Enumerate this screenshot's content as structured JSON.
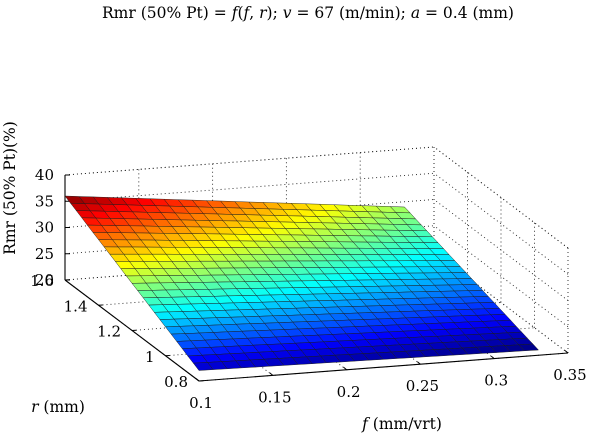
{
  "chart_data": {
    "type": "surface",
    "title": {
      "prefix": "Rmr (50% Pt) = ",
      "f_sym": "f",
      "args_open": "(",
      "args_f": "f",
      "args_sep": ", ",
      "args_r": "r",
      "args_close": ");",
      "v_sym": "v",
      "v_rest": " = 67 (m/min); ",
      "a_sym": "a",
      "a_rest": " = 0.4 (mm)"
    },
    "xlabel": {
      "sym": "f",
      "unit": " (mm/vrt)"
    },
    "ylabel": {
      "sym": "r",
      "unit": " (mm)"
    },
    "zlabel": "Rmr (50% Pt)(%)",
    "x_ticks": [
      "0.1",
      "0.15",
      "0.2",
      "0.25",
      "0.3",
      "0.35"
    ],
    "y_ticks": [
      "0.8",
      "1",
      "1.2",
      "1.4",
      "1.6"
    ],
    "z_ticks": [
      "20",
      "25",
      "30",
      "35",
      "40"
    ],
    "xlim": [
      0.1,
      0.35
    ],
    "ylim": [
      0.8,
      1.6
    ],
    "zlim": [
      20,
      40
    ],
    "grid": true,
    "colormap": "jet",
    "colormap_range": [
      21,
      36
    ],
    "surface_corners": [
      {
        "f": 0.1,
        "r": 0.8,
        "rmr": 22.0
      },
      {
        "f": 0.1,
        "r": 1.6,
        "rmr": 36.0
      },
      {
        "f": 0.33,
        "r": 1.6,
        "rmr": 29.0
      },
      {
        "f": 0.33,
        "r": 0.8,
        "rmr": 21.0
      }
    ],
    "mesh": {
      "f_steps": 24,
      "r_steps": 24
    }
  }
}
